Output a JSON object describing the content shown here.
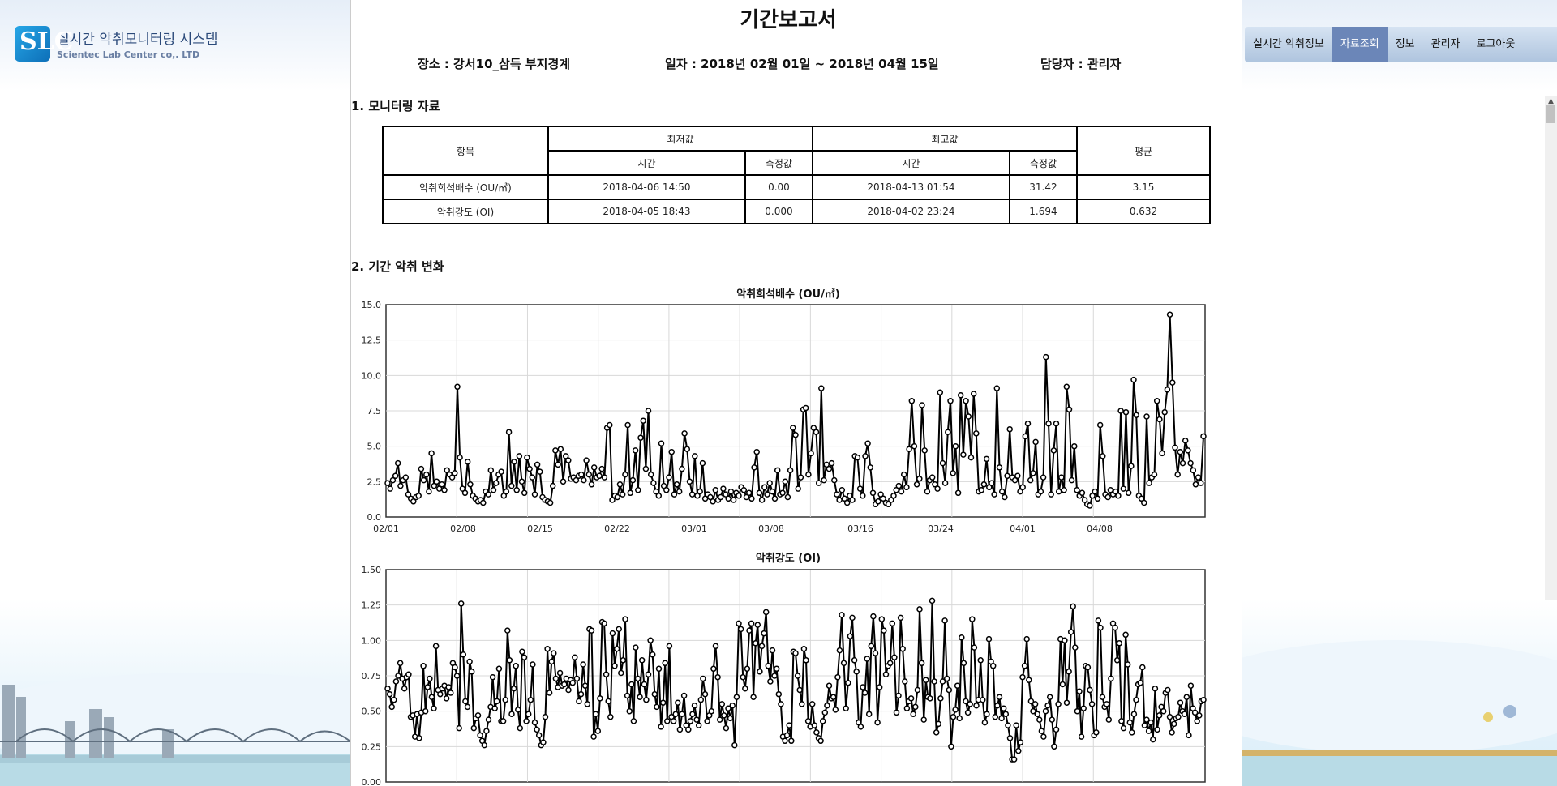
{
  "app": {
    "title": "실시간 악취모니터링 시스템",
    "company": "Scientec Lab Center co,. LTD",
    "logo_letters": "SLC"
  },
  "nav": {
    "items": [
      {
        "label": "실시간 악취정보",
        "active": false
      },
      {
        "label": "자료조회",
        "active": true
      },
      {
        "label": "정보",
        "active": false
      },
      {
        "label": "관리자",
        "active": false
      },
      {
        "label": "로그아웃",
        "active": false
      }
    ]
  },
  "report": {
    "title": "기간보고서",
    "place": "장소 : 강서10_삼득 부지경계",
    "period": "일자 : 2018년 02월 01일 ~ 2018년 04월 15일",
    "manager": "담당자 : 관리자",
    "section1": "1. 모니터링 자료",
    "section2": "2. 기간 악취 변화"
  },
  "table": {
    "headers": {
      "item": "항목",
      "min": "최저값",
      "max": "최고값",
      "avg": "평균",
      "time": "시간",
      "value": "측정값"
    },
    "rows": [
      {
        "item": "악취희석배수 (OU/㎥)",
        "min_time": "2018-04-06 14:50",
        "min_value": "0.00",
        "max_time": "2018-04-13 01:54",
        "max_value": "31.42",
        "avg": "3.15"
      },
      {
        "item": "악취강도 (OI)",
        "min_time": "2018-04-05 18:43",
        "min_value": "0.000",
        "max_time": "2018-04-02 23:24",
        "max_value": "1.694",
        "avg": "0.632"
      }
    ]
  },
  "chart_data": [
    {
      "type": "line",
      "title": "악취희석배수 (OU/㎥)",
      "ylim": [
        0,
        15
      ],
      "yticks": [
        "0.0",
        "2.5",
        "5.0",
        "7.5",
        "10.0",
        "12.5",
        "15.0"
      ],
      "xticks": [
        "02/01",
        "02/08",
        "02/15",
        "02/22",
        "03/01",
        "03/08",
        "03/16",
        "03/24",
        "04/01",
        "04/08"
      ],
      "grid": true,
      "color": "#000000",
      "values": [
        2.4,
        2.0,
        2.6,
        2.9,
        3.8,
        2.2,
        2.6,
        2.8,
        1.6,
        1.3,
        1.1,
        1.4,
        1.5,
        3.4,
        2.6,
        3.0,
        1.8,
        4.5,
        2.2,
        2.5,
        2.0,
        2.3,
        1.9,
        3.3,
        3.0,
        2.8,
        3.1,
        9.2,
        4.2,
        2.0,
        1.7,
        3.9,
        2.3,
        1.5,
        1.3,
        1.1,
        1.2,
        1.0,
        1.8,
        1.6,
        3.3,
        1.9,
        2.4,
        3.0,
        3.2,
        1.5,
        1.8,
        6.0,
        2.2,
        3.9,
        1.9,
        4.3,
        2.5,
        1.7,
        4.2,
        3.4,
        2.8,
        1.6,
        3.7,
        3.2,
        1.4,
        1.2,
        1.1,
        1.0,
        2.2,
        4.7,
        3.7,
        4.8,
        2.5,
        4.3,
        4.0,
        2.7,
        2.8,
        2.6,
        2.9,
        3.0,
        2.6,
        4.0,
        3.0,
        2.3,
        3.5,
        2.8,
        2.9,
        3.4,
        2.8,
        6.3,
        6.5,
        1.2,
        1.5,
        1.4,
        2.3,
        1.6,
        3.0,
        6.5,
        1.7,
        2.6,
        4.7,
        1.9,
        5.6,
        6.8,
        3.4,
        7.5,
        3.0,
        2.4,
        1.8,
        1.5,
        5.2,
        2.2,
        1.9,
        2.8,
        4.6,
        1.6,
        2.3,
        1.8,
        3.4,
        5.9,
        4.8,
        2.5,
        1.6,
        4.3,
        1.5,
        1.8,
        3.8,
        1.3,
        1.6,
        1.4,
        1.1,
        1.9,
        1.2,
        1.4,
        2.0,
        1.6,
        1.3,
        1.8,
        1.2,
        1.7,
        1.5,
        2.1,
        1.9,
        1.4,
        1.7,
        1.3,
        3.5,
        4.6,
        1.7,
        1.2,
        2.1,
        1.6,
        2.4,
        1.8,
        1.3,
        3.3,
        1.6,
        1.7,
        2.5,
        1.4,
        3.3,
        6.3,
        5.8,
        2.0,
        2.8,
        7.6,
        7.7,
        3.0,
        4.5,
        6.3,
        6.0,
        2.4,
        9.1,
        2.6,
        3.7,
        3.4,
        3.8,
        2.6,
        1.6,
        1.2,
        1.9,
        1.3,
        1.0,
        1.5,
        1.2,
        4.3,
        4.2,
        2.0,
        1.5,
        4.3,
        5.2,
        3.5,
        1.7,
        0.9,
        1.1,
        1.6,
        1.3,
        1.0,
        0.9,
        1.2,
        1.5,
        1.9,
        2.2,
        1.8,
        3.0,
        2.1,
        4.8,
        8.2,
        5.0,
        2.3,
        2.7,
        7.9,
        4.7,
        1.8,
        2.6,
        2.8,
        2.3,
        2.0,
        8.8,
        3.8,
        2.4,
        6.0,
        8.2,
        3.1,
        5.0,
        1.7,
        8.6,
        4.4,
        8.2,
        7.1,
        4.2,
        8.7,
        5.9,
        1.8,
        1.9,
        2.3,
        4.1,
        2.1,
        2.4,
        1.6,
        9.1,
        3.5,
        1.8,
        1.4,
        2.9,
        6.2,
        2.8,
        2.6,
        2.9,
        1.8,
        2.1,
        5.7,
        6.6,
        2.6,
        3.1,
        5.3,
        1.6,
        1.8,
        2.8,
        11.3,
        6.6,
        1.6,
        4.7,
        6.6,
        1.8,
        2.8,
        1.9,
        9.2,
        7.6,
        2.6,
        5.0,
        1.9,
        1.5,
        1.7,
        1.2,
        0.9,
        0.8,
        1.5,
        1.8,
        1.3,
        6.5,
        4.3,
        1.6,
        1.4,
        1.9,
        1.6,
        1.8,
        1.5,
        7.5,
        2.0,
        7.4,
        1.7,
        3.6,
        9.7,
        7.2,
        1.5,
        1.3,
        1.0,
        7.1,
        2.4,
        2.8,
        3.0,
        8.2,
        6.9,
        4.5,
        7.4,
        9.0,
        14.3,
        9.5,
        4.9,
        3.0,
        4.6,
        3.8,
        5.4,
        4.7,
        3.8,
        3.3,
        2.3,
        2.8,
        2.4,
        5.7
      ]
    },
    {
      "type": "line",
      "title": "악취강도 (OI)",
      "ylim": [
        0,
        1.5
      ],
      "yticks": [
        "0.00",
        "0.25",
        "0.50",
        "0.75",
        "1.00",
        "1.25",
        "1.50"
      ],
      "xticks": [],
      "grid": true,
      "color": "#000000",
      "values": [
        0.66,
        0.62,
        0.53,
        0.58,
        0.71,
        0.75,
        0.84,
        0.73,
        0.66,
        0.74,
        0.76,
        0.46,
        0.47,
        0.32,
        0.48,
        0.31,
        0.49,
        0.82,
        0.5,
        0.67,
        0.73,
        0.6,
        0.52,
        0.96,
        0.65,
        0.62,
        0.66,
        0.68,
        0.59,
        0.67,
        0.63,
        0.84,
        0.81,
        0.75,
        0.38,
        1.26,
        0.9,
        0.57,
        0.53,
        0.85,
        0.78,
        0.38,
        0.45,
        0.47,
        0.33,
        0.29,
        0.26,
        0.36,
        0.44,
        0.53,
        0.74,
        0.52,
        0.57,
        0.8,
        0.43,
        0.43,
        0.58,
        1.07,
        0.86,
        0.48,
        0.66,
        0.82,
        0.51,
        0.38,
        0.92,
        0.88,
        0.43,
        0.48,
        0.58,
        0.83,
        0.42,
        0.37,
        0.33,
        0.26,
        0.28,
        0.46,
        0.94,
        0.63,
        0.85,
        0.91,
        0.73,
        0.67,
        0.77,
        0.68,
        0.69,
        0.73,
        0.65,
        0.72,
        0.7,
        0.88,
        0.73,
        0.57,
        0.62,
        0.83,
        0.68,
        0.55,
        1.08,
        1.07,
        0.32,
        0.48,
        0.36,
        0.59,
        1.13,
        1.12,
        0.76,
        0.57,
        0.46,
        1.05,
        0.82,
        0.94,
        1.08,
        0.77,
        0.86,
        1.15,
        0.61,
        0.5,
        0.69,
        0.43,
        0.95,
        0.73,
        0.6,
        0.86,
        0.69,
        0.58,
        0.76,
        1.0,
        0.9,
        0.62,
        0.53,
        0.8,
        0.39,
        0.56,
        0.84,
        0.43,
        0.96,
        0.46,
        0.43,
        0.48,
        0.56,
        0.37,
        0.48,
        0.61,
        0.4,
        0.37,
        0.43,
        0.48,
        0.54,
        0.44,
        0.4,
        0.58,
        0.73,
        0.62,
        0.43,
        0.47,
        0.5,
        0.8,
        0.96,
        0.74,
        0.44,
        0.55,
        0.47,
        0.38,
        0.52,
        0.45,
        0.54,
        0.26,
        0.6,
        1.12,
        1.08,
        0.74,
        0.66,
        0.8,
        1.07,
        1.12,
        0.6,
        0.98,
        1.11,
        0.78,
        0.96,
        1.05,
        1.2,
        0.82,
        0.71,
        0.93,
        0.75,
        0.8,
        0.62,
        0.55,
        0.32,
        0.29,
        0.33,
        0.4,
        0.29,
        0.92,
        0.91,
        0.75,
        0.65,
        0.55,
        0.94,
        0.86,
        0.43,
        0.39,
        0.55,
        0.4,
        0.35,
        0.31,
        0.29,
        0.43,
        0.49,
        0.54,
        0.68,
        0.59,
        0.6,
        0.51,
        0.74,
        0.93,
        1.18,
        0.84,
        0.52,
        0.7,
        1.03,
        1.16,
        0.86,
        0.78,
        0.42,
        0.39,
        0.67,
        0.63,
        0.87,
        0.48,
        0.96,
        1.17,
        0.91,
        0.42,
        0.67,
        1.15,
        1.07,
        0.76,
        0.82,
        0.84,
        1.12,
        0.88,
        0.49,
        0.61,
        1.16,
        0.94,
        0.71,
        0.52,
        0.57,
        0.59,
        0.48,
        0.53,
        0.65,
        1.22,
        0.84,
        0.44,
        0.72,
        0.6,
        0.59,
        1.28,
        0.71,
        0.35,
        0.41,
        0.59,
        0.71,
        1.14,
        0.73,
        0.65,
        0.25,
        0.46,
        0.51,
        0.68,
        0.45,
        1.02,
        0.84,
        0.57,
        0.49,
        0.55,
        1.15,
        0.95,
        0.54,
        0.58,
        0.86,
        0.58,
        0.42,
        0.48,
        1.01,
        0.85,
        0.82,
        0.46,
        0.54,
        0.6,
        0.45,
        0.52,
        0.48,
        0.4,
        0.31,
        0.16,
        0.16,
        0.4,
        0.22,
        0.28,
        0.74,
        0.82,
        1.01,
        0.72,
        0.57,
        0.5,
        0.55,
        0.48,
        0.44,
        0.36,
        0.32,
        0.5,
        0.54,
        0.6,
        0.44,
        0.25,
        0.37,
        0.55,
        1.01,
        0.69,
        1.0,
        0.56,
        0.78,
        1.06,
        1.24,
        0.95,
        0.5,
        0.64,
        0.32,
        0.52,
        0.82,
        0.81,
        0.65,
        0.55,
        0.33,
        0.35,
        1.14,
        1.09,
        0.6,
        0.53,
        0.55,
        0.44,
        0.73,
        1.12,
        1.09,
        0.86,
        0.98,
        0.43,
        0.38,
        1.04,
        0.83,
        0.42,
        0.35,
        0.48,
        0.58,
        0.69,
        0.7,
        0.81,
        0.4,
        0.44,
        0.36,
        0.42,
        0.3,
        0.66,
        0.37,
        0.47,
        0.53,
        0.5,
        0.63,
        0.65,
        0.46,
        0.35,
        0.41,
        0.45,
        0.46,
        0.56,
        0.5,
        0.48,
        0.6,
        0.33,
        0.68,
        0.52,
        0.49,
        0.43,
        0.47,
        0.57,
        0.58
      ]
    }
  ]
}
